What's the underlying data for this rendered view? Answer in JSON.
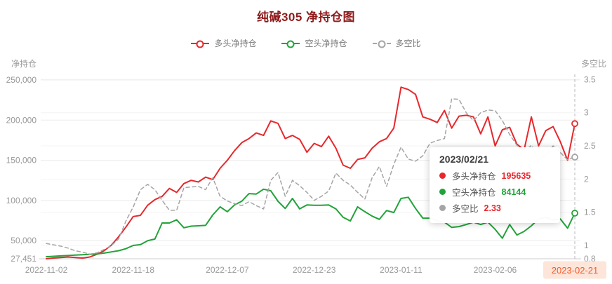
{
  "title": "纯碱305 净持仓图",
  "legend": {
    "items": [
      {
        "label": "多头净持仓",
        "color": "#e7282d",
        "style": "solid"
      },
      {
        "label": "空头净持仓",
        "color": "#21a339",
        "style": "solid"
      },
      {
        "label": "多空比",
        "color": "#a5a5a5",
        "style": "dashed"
      }
    ]
  },
  "left_axis": {
    "name": "净持仓",
    "ticks": [
      {
        "v": 27451,
        "label": "27,451"
      },
      {
        "v": 50000,
        "label": "50,000"
      },
      {
        "v": 100000,
        "label": "100,000"
      },
      {
        "v": 150000,
        "label": "150,000"
      },
      {
        "v": 200000,
        "label": "200,000"
      },
      {
        "v": 250000,
        "label": "250,000"
      }
    ]
  },
  "right_axis": {
    "name": "多空比",
    "ticks": [
      {
        "v": 0.8,
        "label": "0.8"
      },
      {
        "v": 1,
        "label": "1"
      },
      {
        "v": 1.5,
        "label": "1.5"
      },
      {
        "v": 2,
        "label": "2"
      },
      {
        "v": 2.5,
        "label": "2.5"
      },
      {
        "v": 3,
        "label": "3"
      },
      {
        "v": 3.5,
        "label": "3.5"
      }
    ]
  },
  "x_axis": {
    "labels": [
      {
        "label": "2022-11-02",
        "index": 0,
        "highlight": false
      },
      {
        "label": "2022-11-18",
        "index": 12,
        "highlight": false
      },
      {
        "label": "2022-12-07",
        "index": 25,
        "highlight": false
      },
      {
        "label": "2022-12-23",
        "index": 37,
        "highlight": false
      },
      {
        "label": "2023-01-11",
        "index": 49,
        "highlight": false
      },
      {
        "label": "2023-02-06",
        "index": 62,
        "highlight": false
      },
      {
        "label": "2023-02-21",
        "index": 73,
        "highlight": true
      }
    ],
    "highlight_bg": "#fde5da",
    "highlight_color": "#ef5b2b"
  },
  "tooltip": {
    "date": "2023/02/21",
    "rows": [
      {
        "label": "多头净持仓",
        "value": "195635",
        "dot_color": "#e7282d",
        "value_color": "#e7282d"
      },
      {
        "label": "空头净持仓",
        "value": "84144",
        "dot_color": "#21a339",
        "value_color": "#21a339"
      },
      {
        "label": "多空比",
        "value": "2.33",
        "dot_color": "#a5a5a5",
        "value_color": "#e7282d"
      }
    ]
  },
  "chart_data": {
    "type": "line",
    "title": "纯碱305 净持仓图",
    "legend_position": "top",
    "grid": true,
    "ylabel_left": "净持仓",
    "ylabel_right": "多空比",
    "ylim_left": [
      27451,
      250000
    ],
    "ylim_right": [
      0.8,
      3.5
    ],
    "cursor_index": 73,
    "x": [
      "2022-11-02",
      "2022-11-03",
      "2022-11-04",
      "2022-11-07",
      "2022-11-08",
      "2022-11-09",
      "2022-11-10",
      "2022-11-11",
      "2022-11-14",
      "2022-11-15",
      "2022-11-16",
      "2022-11-17",
      "2022-11-18",
      "2022-11-21",
      "2022-11-22",
      "2022-11-23",
      "2022-11-24",
      "2022-11-25",
      "2022-11-28",
      "2022-11-29",
      "2022-11-30",
      "2022-12-01",
      "2022-12-02",
      "2022-12-05",
      "2022-12-06",
      "2022-12-07",
      "2022-12-08",
      "2022-12-09",
      "2022-12-12",
      "2022-12-13",
      "2022-12-14",
      "2022-12-15",
      "2022-12-16",
      "2022-12-19",
      "2022-12-20",
      "2022-12-21",
      "2022-12-22",
      "2022-12-23",
      "2022-12-26",
      "2022-12-27",
      "2022-12-28",
      "2022-12-29",
      "2022-12-30",
      "2023-01-03",
      "2023-01-04",
      "2023-01-05",
      "2023-01-06",
      "2023-01-09",
      "2023-01-10",
      "2023-01-11",
      "2023-01-12",
      "2023-01-13",
      "2023-01-16",
      "2023-01-17",
      "2023-01-18",
      "2023-01-19",
      "2023-01-20",
      "2023-01-30",
      "2023-01-31",
      "2023-02-01",
      "2023-02-02",
      "2023-02-03",
      "2023-02-06",
      "2023-02-07",
      "2023-02-08",
      "2023-02-09",
      "2023-02-10",
      "2023-02-13",
      "2023-02-14",
      "2023-02-15",
      "2023-02-16",
      "2023-02-17",
      "2023-02-20",
      "2023-02-21"
    ],
    "series": [
      {
        "id": "long",
        "name": "多头净持仓",
        "axis": "left",
        "color": "#e7282d",
        "dashed": false,
        "values": [
          27451,
          28300,
          29000,
          29600,
          28900,
          28300,
          29600,
          33000,
          37500,
          44500,
          55000,
          67000,
          80000,
          81500,
          94000,
          101000,
          105000,
          115000,
          110000,
          121000,
          125000,
          123000,
          129000,
          126000,
          140000,
          150000,
          162000,
          172000,
          177000,
          184000,
          181000,
          199000,
          196000,
          177000,
          181000,
          176000,
          160000,
          171000,
          167000,
          180000,
          165000,
          144000,
          140000,
          151000,
          153000,
          165000,
          173000,
          177000,
          190000,
          241000,
          238000,
          232000,
          204000,
          201000,
          197000,
          212000,
          190000,
          205000,
          206000,
          204000,
          183000,
          204000,
          168000,
          188000,
          191000,
          170000,
          163000,
          204000,
          168000,
          187000,
          192000,
          173000,
          150000,
          195635
        ]
      },
      {
        "id": "short",
        "name": "空头净持仓",
        "axis": "left",
        "color": "#21a339",
        "dashed": false,
        "values": [
          30000,
          30500,
          31000,
          31500,
          32000,
          32500,
          33000,
          33500,
          34500,
          36000,
          37500,
          40000,
          44000,
          45000,
          50000,
          52000,
          72000,
          72000,
          76000,
          66000,
          68000,
          68500,
          69000,
          82000,
          92000,
          86000,
          94500,
          99000,
          108500,
          108000,
          114000,
          112000,
          99000,
          90000,
          102500,
          89500,
          94500,
          94000,
          94000,
          94500,
          89500,
          79000,
          74500,
          92000,
          86000,
          80500,
          76500,
          87500,
          85000,
          102500,
          104000,
          90000,
          78000,
          78000,
          74500,
          73000,
          66500,
          67500,
          70000,
          73000,
          70000,
          73000,
          64000,
          53000,
          70000,
          57000,
          61500,
          68500,
          77000,
          79000,
          75500,
          77000,
          65500,
          84144
        ]
      },
      {
        "id": "ratio",
        "name": "多空比",
        "axis": "right",
        "color": "#a5a5a5",
        "dashed": true,
        "values": [
          1.03,
          1.01,
          0.99,
          0.96,
          0.92,
          0.9,
          0.87,
          0.89,
          0.94,
          1.0,
          1.1,
          1.37,
          1.58,
          1.84,
          1.92,
          1.84,
          1.68,
          1.53,
          1.53,
          1.87,
          1.88,
          1.89,
          1.84,
          2.02,
          1.74,
          1.67,
          1.63,
          1.6,
          1.66,
          1.6,
          1.55,
          1.98,
          2.1,
          1.74,
          1.98,
          1.9,
          1.8,
          1.68,
          1.74,
          1.82,
          2.09,
          1.98,
          1.91,
          1.8,
          1.7,
          2.02,
          2.19,
          1.89,
          2.22,
          2.48,
          2.3,
          2.27,
          2.35,
          2.54,
          2.58,
          2.61,
          3.21,
          3.2,
          3.0,
          2.88,
          3.0,
          3.04,
          3.03,
          2.88,
          2.67,
          2.51,
          2.4,
          2.51,
          2.3,
          2.35,
          2.5,
          2.4,
          2.29,
          2.33
        ]
      }
    ]
  }
}
